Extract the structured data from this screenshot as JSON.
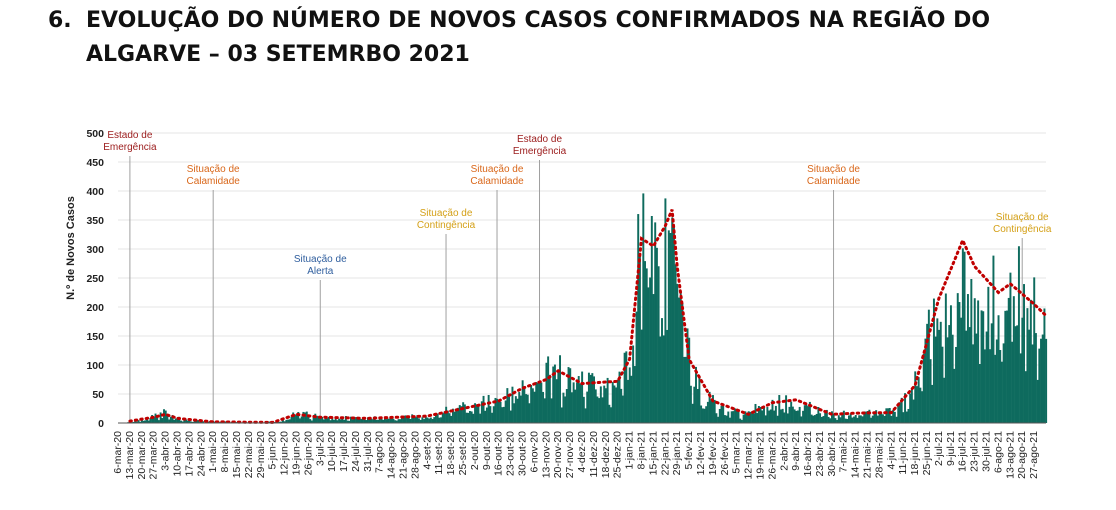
{
  "heading": {
    "number": "6.",
    "line1": "EVOLUÇÃO DO NÚMERO DE NOVOS CASOS CONFIRMADOS NA REGIÃO DO",
    "line2": "ALGARVE – 03 SETEMRBO 2021"
  },
  "colors": {
    "bars": "#0e6b5e",
    "average": "#c00000",
    "annotation_red": "#9b1b1b",
    "annotation_orange": "#d9671a",
    "annotation_yellow": "#d4a017",
    "annotation_blue": "#2f5e9e",
    "vline": "#a0a0a0"
  },
  "chart_data": {
    "type": "bar",
    "ylabel": "N.º de Novos Casos",
    "ylim": [
      0,
      500
    ],
    "yticks": [
      0,
      50,
      100,
      150,
      200,
      250,
      300,
      350,
      400,
      450,
      500
    ],
    "x_start": "6-mar-20",
    "x_end": "3-set-21",
    "x_tick_labels": [
      "6-mar-20",
      "13-mar-20",
      "20-mar-20",
      "27-mar-20",
      "3-abr-20",
      "10-abr-20",
      "17-abr-20",
      "24-abr-20",
      "1-mai-20",
      "8-mai-20",
      "15-mai-20",
      "22-mai-20",
      "29-mai-20",
      "5-jun-20",
      "12-jun-20",
      "19-jun-20",
      "26-jun-20",
      "3-jul-20",
      "10-jul-20",
      "17-jul-20",
      "24-jul-20",
      "31-jul-20",
      "7-ago-20",
      "14-ago-20",
      "21-ago-20",
      "28-ago-20",
      "4-set-20",
      "11-set-20",
      "18-set-20",
      "25-set-20",
      "2-out-20",
      "9-out-20",
      "16-out-20",
      "23-out-20",
      "30-out-20",
      "6-nov-20",
      "13-nov-20",
      "20-nov-20",
      "27-nov-20",
      "4-dez-20",
      "11-dez-20",
      "18-dez-20",
      "25-dez-20",
      "1-jan-21",
      "8-jan-21",
      "15-jan-21",
      "22-jan-21",
      "29-jan-21",
      "5-fev-21",
      "12-fev-21",
      "19-fev-21",
      "26-fev-21",
      "5-mar-21",
      "12-mar-21",
      "19-mar-21",
      "26-mar-21",
      "2-abr-21",
      "9-abr-21",
      "16-abr-21",
      "23-abr-21",
      "30-abr-21",
      "7-mai-21",
      "14-mai-21",
      "21-mai-21",
      "28-mai-21",
      "4-jun-21",
      "11-jun-21",
      "18-jun-21",
      "25-jun-21",
      "2-jul-21",
      "9-jul-21",
      "16-jul-21",
      "23-jul-21",
      "30-jul-21",
      "6-ago-21",
      "13-ago-21",
      "20-ago-21",
      "27-ago-21"
    ],
    "series": [
      {
        "kind": "bar",
        "note": "daily new confirmed cases"
      },
      {
        "kind": "dotted-line",
        "note": "moving average"
      }
    ],
    "daily_trend_keypoints": [
      [
        "6-mar-20",
        0
      ],
      [
        "20-mar-20",
        5
      ],
      [
        "27-mar-20",
        12
      ],
      [
        "3-abr-20",
        18
      ],
      [
        "10-abr-20",
        8
      ],
      [
        "24-abr-20",
        3
      ],
      [
        "29-mai-20",
        1
      ],
      [
        "12-jun-20",
        5
      ],
      [
        "19-jun-20",
        20
      ],
      [
        "26-jun-20",
        14
      ],
      [
        "10-jul-20",
        10
      ],
      [
        "31-jul-20",
        8
      ],
      [
        "28-ago-20",
        12
      ],
      [
        "11-set-20",
        18
      ],
      [
        "25-set-20",
        28
      ],
      [
        "9-out-20",
        35
      ],
      [
        "23-out-20",
        45
      ],
      [
        "30-out-20",
        65
      ],
      [
        "6-nov-20",
        80
      ],
      [
        "20-nov-20",
        88
      ],
      [
        "4-dez-20",
        65
      ],
      [
        "18-dez-20",
        58
      ],
      [
        "25-dez-20",
        75
      ],
      [
        "1-jan-21",
        110
      ],
      [
        "8-jan-21",
        330
      ],
      [
        "15-jan-21",
        305
      ],
      [
        "22-jan-21",
        340
      ],
      [
        "26-jan-21",
        370
      ],
      [
        "29-jan-21",
        280
      ],
      [
        "5-fev-21",
        120
      ],
      [
        "12-fev-21",
        55
      ],
      [
        "19-fev-21",
        35
      ],
      [
        "26-fev-21",
        22
      ],
      [
        "12-mar-21",
        15
      ],
      [
        "19-mar-21",
        30
      ],
      [
        "2-abr-21",
        38
      ],
      [
        "9-abr-21",
        40
      ],
      [
        "16-abr-21",
        30
      ],
      [
        "23-abr-21",
        22
      ],
      [
        "30-abr-21",
        15
      ],
      [
        "14-mai-21",
        18
      ],
      [
        "28-mai-21",
        16
      ],
      [
        "4-jun-21",
        20
      ],
      [
        "11-jun-21",
        35
      ],
      [
        "18-jun-21",
        70
      ],
      [
        "25-jun-21",
        150
      ],
      [
        "2-jul-21",
        215
      ],
      [
        "9-jul-21",
        270
      ],
      [
        "16-jul-21",
        310
      ],
      [
        "23-jul-21",
        270
      ],
      [
        "30-jul-21",
        235
      ],
      [
        "6-ago-21",
        210
      ],
      [
        "13-ago-21",
        240
      ],
      [
        "20-ago-21",
        220
      ],
      [
        "27-ago-21",
        200
      ],
      [
        "3-set-21",
        180
      ]
    ],
    "average_keypoints": [
      [
        "6-mar-20",
        0
      ],
      [
        "27-mar-20",
        10
      ],
      [
        "3-abr-20",
        15
      ],
      [
        "10-abr-20",
        8
      ],
      [
        "1-mai-20",
        2
      ],
      [
        "5-jun-20",
        1
      ],
      [
        "19-jun-20",
        15
      ],
      [
        "3-jul-20",
        10
      ],
      [
        "31-jul-20",
        8
      ],
      [
        "4-set-20",
        12
      ],
      [
        "25-set-20",
        25
      ],
      [
        "16-out-20",
        38
      ],
      [
        "30-out-20",
        60
      ],
      [
        "13-nov-20",
        75
      ],
      [
        "20-nov-20",
        90
      ],
      [
        "4-dez-20",
        68
      ],
      [
        "25-dez-20",
        72
      ],
      [
        "1-jan-21",
        110
      ],
      [
        "8-jan-21",
        318
      ],
      [
        "15-jan-21",
        305
      ],
      [
        "22-jan-21",
        340
      ],
      [
        "26-jan-21",
        368
      ],
      [
        "29-jan-21",
        270
      ],
      [
        "5-fev-21",
        110
      ],
      [
        "19-fev-21",
        38
      ],
      [
        "12-mar-21",
        15
      ],
      [
        "26-mar-21",
        35
      ],
      [
        "9-abr-21",
        40
      ],
      [
        "30-abr-21",
        15
      ],
      [
        "14-mai-21",
        17
      ],
      [
        "4-jun-21",
        18
      ],
      [
        "18-jun-21",
        65
      ],
      [
        "2-jul-21",
        215
      ],
      [
        "16-jul-21",
        315
      ],
      [
        "23-jul-21",
        270
      ],
      [
        "6-ago-21",
        225
      ],
      [
        "13-ago-21",
        240
      ],
      [
        "27-ago-21",
        205
      ],
      [
        "3-set-21",
        185
      ]
    ],
    "annotations": [
      {
        "date": "13-mar-20",
        "lines": [
          "Estado de",
          "Emergência"
        ],
        "color": "red"
      },
      {
        "date": "1-mai-20",
        "lines": [
          "Situação de",
          "Calamidade"
        ],
        "color": "orange"
      },
      {
        "date": "3-jul-20",
        "lines": [
          "Situação de",
          "Alerta"
        ],
        "color": "blue"
      },
      {
        "date": "15-set-20",
        "lines": [
          "Situação de",
          "Contingência"
        ],
        "color": "yellow"
      },
      {
        "date": "15-out-20",
        "lines": [
          "Situação de",
          "Calamidade"
        ],
        "color": "orange"
      },
      {
        "date": "9-nov-20",
        "lines": [
          "Estado de",
          "Emergência"
        ],
        "color": "red"
      },
      {
        "date": "1-mai-21",
        "lines": [
          "Situação de",
          "Calamidade"
        ],
        "color": "orange"
      },
      {
        "date": "20-ago-21",
        "lines": [
          "Situação de",
          "Contingência"
        ],
        "color": "yellow"
      }
    ]
  }
}
